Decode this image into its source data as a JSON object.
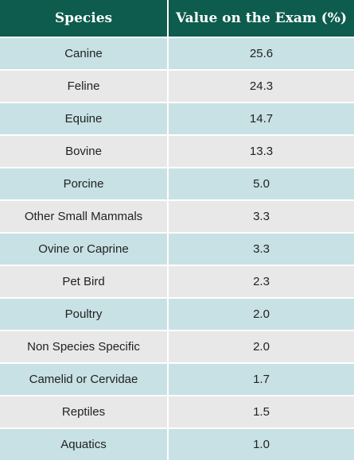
{
  "table": {
    "headers": {
      "species": "Species",
      "value": "Value on the Exam (%)"
    },
    "rows": [
      {
        "species": "Canine",
        "value": "25.6"
      },
      {
        "species": "Feline",
        "value": "24.3"
      },
      {
        "species": "Equine",
        "value": "14.7"
      },
      {
        "species": "Bovine",
        "value": "13.3"
      },
      {
        "species": "Porcine",
        "value": "5.0"
      },
      {
        "species": "Other Small Mammals",
        "value": "3.3"
      },
      {
        "species": "Ovine or Caprine",
        "value": "3.3"
      },
      {
        "species": "Pet Bird",
        "value": "2.3"
      },
      {
        "species": "Poultry",
        "value": "2.0"
      },
      {
        "species": "Non Species Specific",
        "value": "2.0"
      },
      {
        "species": "Camelid or Cervidae",
        "value": "1.7"
      },
      {
        "species": "Reptiles",
        "value": "1.5"
      },
      {
        "species": "Aquatics",
        "value": "1.0"
      }
    ]
  },
  "colors": {
    "header_background": "#0d5c4d",
    "row_odd": "#c8e1e4",
    "row_even": "#e8e8e8"
  }
}
